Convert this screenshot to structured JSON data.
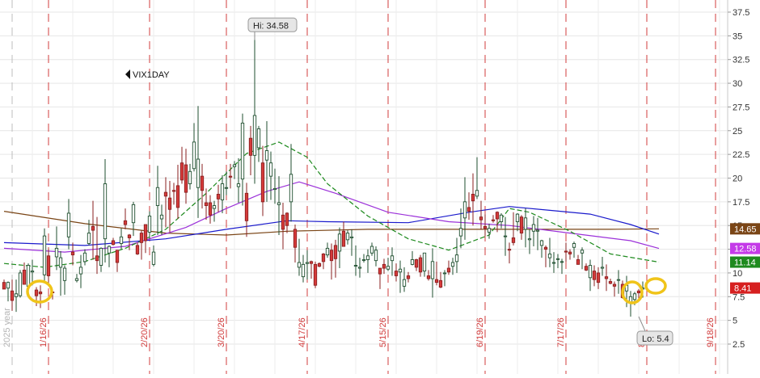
{
  "symbol_label": "VIX1DAY",
  "chart_data": {
    "type": "candlestick",
    "symbol": "VIX1DAY",
    "ylim": [
      0.5,
      39
    ],
    "y_ticks": [
      2.5,
      5,
      7.5,
      10,
      12.5,
      15,
      17.5,
      20,
      22.5,
      25,
      27.5,
      30,
      32.5,
      35,
      37.5
    ],
    "y_tick_labels": [
      "2.5",
      "5",
      "7.5",
      "10",
      "12.5",
      "15",
      "17.5",
      "20",
      "22.5",
      "25",
      "27.5",
      "30",
      "32.5",
      "35",
      "37.5"
    ],
    "date_ticks": [
      {
        "label": "2025 year",
        "idx": 2,
        "faint": true
      },
      {
        "label": "1/16/26",
        "idx": 11
      },
      {
        "label": "2/20/26",
        "idx": 36
      },
      {
        "label": "3/20/26",
        "idx": 55
      },
      {
        "label": "4/17/26",
        "idx": 75
      },
      {
        "label": "5/15/26",
        "idx": 95
      },
      {
        "label": "6/19/26",
        "idx": 119
      },
      {
        "label": "7/17/26",
        "idx": 139
      },
      {
        "label": "8/2",
        "idx": 159
      },
      {
        "label": "9/18/26",
        "idx": 176
      }
    ],
    "high_label": "Hi: 34.58",
    "low_label": "Lo: 5.4",
    "high_value": 34.58,
    "low_value": 5.4,
    "high_idx": 62,
    "low_idx": 157,
    "price_badges": [
      {
        "label": "14.65",
        "value": 14.65,
        "color": "#7a4516"
      },
      {
        "label": "12.58",
        "value": 12.58,
        "color": "#c43ae8"
      },
      {
        "label": "11.14",
        "value": 11.14,
        "color": "#1e8a1e"
      },
      {
        "label": "8.41",
        "value": 8.41,
        "color": "#d62020"
      }
    ],
    "moving_averages": [
      {
        "color": "#7a4516",
        "dashed": false,
        "points": [
          [
            0,
            16.5
          ],
          [
            20,
            15.2
          ],
          [
            40,
            14.2
          ],
          [
            55,
            14.0
          ],
          [
            70,
            14.4
          ],
          [
            90,
            14.6
          ],
          [
            110,
            14.6
          ],
          [
            130,
            14.6
          ],
          [
            150,
            14.6
          ],
          [
            162,
            14.65
          ]
        ]
      },
      {
        "color": "#1a1acc",
        "dashed": false,
        "points": [
          [
            0,
            13.2
          ],
          [
            20,
            12.9
          ],
          [
            40,
            13.6
          ],
          [
            55,
            14.6
          ],
          [
            70,
            15.5
          ],
          [
            80,
            15.4
          ],
          [
            100,
            15.3
          ],
          [
            115,
            16.4
          ],
          [
            125,
            17.0
          ],
          [
            135,
            16.6
          ],
          [
            145,
            16.2
          ],
          [
            155,
            15.1
          ],
          [
            162,
            14.1
          ]
        ]
      },
      {
        "color": "#9b30d9",
        "dashed": false,
        "points": [
          [
            0,
            12.6
          ],
          [
            15,
            12.2
          ],
          [
            30,
            12.8
          ],
          [
            45,
            14.8
          ],
          [
            55,
            16.8
          ],
          [
            65,
            18.6
          ],
          [
            73,
            19.6
          ],
          [
            82,
            18.4
          ],
          [
            95,
            16.4
          ],
          [
            110,
            15.4
          ],
          [
            125,
            15.0
          ],
          [
            140,
            14.2
          ],
          [
            155,
            13.4
          ],
          [
            162,
            12.58
          ]
        ]
      },
      {
        "color": "#1e8a1e",
        "dashed": true,
        "points": [
          [
            0,
            11.0
          ],
          [
            10,
            10.6
          ],
          [
            20,
            11.2
          ],
          [
            30,
            12.6
          ],
          [
            40,
            14.6
          ],
          [
            50,
            18.4
          ],
          [
            60,
            22.6
          ],
          [
            68,
            23.8
          ],
          [
            75,
            22.2
          ],
          [
            80,
            19.4
          ],
          [
            90,
            16.0
          ],
          [
            100,
            13.6
          ],
          [
            110,
            12.4
          ],
          [
            120,
            14.0
          ],
          [
            125,
            16.8
          ],
          [
            130,
            16.4
          ],
          [
            140,
            14.4
          ],
          [
            150,
            12.0
          ],
          [
            162,
            11.14
          ]
        ]
      }
    ],
    "candles": [
      [
        9.0,
        9.3,
        8.5,
        8.3
      ],
      [
        8.4,
        9.1,
        7.0,
        9.0
      ],
      [
        8.1,
        9.3,
        6.0,
        7.1
      ],
      [
        7.5,
        9.3,
        5.9,
        7.8
      ],
      [
        7.6,
        10.3,
        7.4,
        10.0
      ],
      [
        10.3,
        11.1,
        8.8,
        8.8
      ],
      [
        8.6,
        11.0,
        7.5,
        10.8
      ],
      [
        10.1,
        11.4,
        8.7,
        10.2
      ],
      [
        8.2,
        8.5,
        6.5,
        7.6
      ],
      [
        8.0,
        8.7,
        6.3,
        7.8
      ],
      [
        9.8,
        14.7,
        9.2,
        13.9
      ],
      [
        11.8,
        12.5,
        8.9,
        9.7
      ],
      [
        8.0,
        8.2,
        7.2,
        7.9
      ],
      [
        11.7,
        14.9,
        10.3,
        12.6
      ],
      [
        10.6,
        12.3,
        7.6,
        11.6
      ],
      [
        9.2,
        10.8,
        7.7,
        10.5
      ],
      [
        13.8,
        17.8,
        12.5,
        16.3
      ],
      [
        12.2,
        13.2,
        10.8,
        11.9
      ],
      [
        9.2,
        9.9,
        9.0,
        9.4
      ],
      [
        9.9,
        11.9,
        8.4,
        10.6
      ],
      [
        11.2,
        12.5,
        10.8,
        12.1
      ],
      [
        13.1,
        15.6,
        12.9,
        14.2
      ],
      [
        14.9,
        17.6,
        11.4,
        14.5
      ],
      [
        11.8,
        15.9,
        9.9,
        11.3
      ],
      [
        10.8,
        12.7,
        10.1,
        12.6
      ],
      [
        13.6,
        22.0,
        11.1,
        19.4
      ],
      [
        12.1,
        12.9,
        10.6,
        12.8
      ],
      [
        13.4,
        13.7,
        12.9,
        13.0
      ],
      [
        12.4,
        12.4,
        10.1,
        11.1
      ],
      [
        13.1,
        14.7,
        12.5,
        13.8
      ],
      [
        15.5,
        16.8,
        14.6,
        15.1
      ],
      [
        14.0,
        14.1,
        12.4,
        13.7
      ],
      [
        15.3,
        17.5,
        13.9,
        17.2
      ],
      [
        12.9,
        13.2,
        11.9,
        12.0
      ],
      [
        14.2,
        14.5,
        11.4,
        13.2
      ],
      [
        15.1,
        15.1,
        12.1,
        13.4
      ],
      [
        14.3,
        16.5,
        13.6,
        16.0
      ],
      [
        10.9,
        12.9,
        10.7,
        12.2
      ],
      [
        17.1,
        21.3,
        14.0,
        19.0
      ],
      [
        15.7,
        17.2,
        14.0,
        16.1
      ],
      [
        18.5,
        20.1,
        14.8,
        18.1
      ],
      [
        17.9,
        19.7,
        14.3,
        16.7
      ],
      [
        18.7,
        19.5,
        17.2,
        18.6
      ],
      [
        19.2,
        21.4,
        15.7,
        16.9
      ],
      [
        21.6,
        23.3,
        19.4,
        19.8
      ],
      [
        21.4,
        23.1,
        17.3,
        18.5
      ],
      [
        19.4,
        21.5,
        18.8,
        20.7
      ],
      [
        21.0,
        25.8,
        20.7,
        23.8
      ],
      [
        19.0,
        27.6,
        15.8,
        22.0
      ],
      [
        20.2,
        21.5,
        16.8,
        18.7
      ],
      [
        17.4,
        18.9,
        15.6,
        17.1
      ],
      [
        17.4,
        18.2,
        15.2,
        16.1
      ],
      [
        16.8,
        17.6,
        15.4,
        17.1
      ],
      [
        18.3,
        19.3,
        16.4,
        17.8
      ],
      [
        17.7,
        20.3,
        16.3,
        19.4
      ],
      [
        19.0,
        20.7,
        18.2,
        19.0
      ],
      [
        20.2,
        21.5,
        18.9,
        20.1
      ],
      [
        21.2,
        21.8,
        19.9,
        21.4
      ],
      [
        19.1,
        22.1,
        17.4,
        19.4
      ],
      [
        19.9,
        26.8,
        17.1,
        25.8
      ],
      [
        18.4,
        19.5,
        13.8,
        15.5
      ],
      [
        24.2,
        25.5,
        20.3,
        22.4
      ],
      [
        22.4,
        34.58,
        19.4,
        26.6
      ],
      [
        23.2,
        25.5,
        21.7,
        25.2
      ],
      [
        21.6,
        23.4,
        16.0,
        17.5
      ],
      [
        21.9,
        26.0,
        17.5,
        22.9
      ],
      [
        20.2,
        22.8,
        17.7,
        21.6
      ],
      [
        18.8,
        21.0,
        17.3,
        18.9
      ],
      [
        17.2,
        20.2,
        14.0,
        17.4
      ],
      [
        16.1,
        17.4,
        12.5,
        14.6
      ],
      [
        16.3,
        16.4,
        14.2,
        15.0
      ],
      [
        17.5,
        23.6,
        15.4,
        20.4
      ],
      [
        14.6,
        15.1,
        11.1,
        12.7
      ],
      [
        10.6,
        13.6,
        9.7,
        11.1
      ],
      [
        9.6,
        11.9,
        9.0,
        10.9
      ],
      [
        11.0,
        12.4,
        9.3,
        11.1
      ],
      [
        11.2,
        11.3,
        9.4,
        11.0
      ],
      [
        10.9,
        11.2,
        8.4,
        8.7
      ],
      [
        11.0,
        11.1,
        10.6,
        10.7
      ],
      [
        12.0,
        12.1,
        10.4,
        11.2
      ],
      [
        11.9,
        13.2,
        11.6,
        12.6
      ],
      [
        12.4,
        13.1,
        9.3,
        11.3
      ],
      [
        12.9,
        13.5,
        9.5,
        11.5
      ],
      [
        12.3,
        14.8,
        10.5,
        14.1
      ],
      [
        14.4,
        15.4,
        12.8,
        12.8
      ],
      [
        13.5,
        14.5,
        13.0,
        14.2
      ],
      [
        13.7,
        14.6,
        11.8,
        13.8
      ],
      [
        10.8,
        12.9,
        9.7,
        10.8
      ],
      [
        10.5,
        11.6,
        9.5,
        10.6
      ],
      [
        11.4,
        12.0,
        11.1,
        11.4
      ],
      [
        11.4,
        12.5,
        10.0,
        11.8
      ],
      [
        12.1,
        13.2,
        11.8,
        12.8
      ],
      [
        11.3,
        12.8,
        10.7,
        12.4
      ],
      [
        10.5,
        10.5,
        8.3,
        9.9
      ],
      [
        10.9,
        11.5,
        9.9,
        10.5
      ],
      [
        10.4,
        11.6,
        10.2,
        10.7
      ],
      [
        11.3,
        12.7,
        9.7,
        11.8
      ],
      [
        10.2,
        11.0,
        9.1,
        9.7
      ],
      [
        10.1,
        11.3,
        7.9,
        10.4
      ],
      [
        8.6,
        10.6,
        8.0,
        9.3
      ],
      [
        9.7,
        10.1,
        9.0,
        9.4
      ],
      [
        10.9,
        12.3,
        10.8,
        11.4
      ],
      [
        11.4,
        11.5,
        10.2,
        10.6
      ],
      [
        11.6,
        11.9,
        9.6,
        10.1
      ],
      [
        10.2,
        12.1,
        9.6,
        12.1
      ],
      [
        9.7,
        10.3,
        9.2,
        9.4
      ],
      [
        9.4,
        12.6,
        7.4,
        11.2
      ],
      [
        9.3,
        11.2,
        8.7,
        9.0
      ],
      [
        9.2,
        10.1,
        8.4,
        8.5
      ],
      [
        10.0,
        10.3,
        8.6,
        10.0
      ],
      [
        10.5,
        11.3,
        9.8,
        10.1
      ],
      [
        10.7,
        11.6,
        9.8,
        11.1
      ],
      [
        11.2,
        13.7,
        10.0,
        11.9
      ],
      [
        13.9,
        16.8,
        12.6,
        14.7
      ],
      [
        15.8,
        20.1,
        13.5,
        17.5
      ],
      [
        16.9,
        18.5,
        15.6,
        16.5
      ],
      [
        18.3,
        20.5,
        15.0,
        17.6
      ],
      [
        18.1,
        22.2,
        17.8,
        18.7
      ],
      [
        15.9,
        17.6,
        14.6,
        15.6
      ],
      [
        14.9,
        16.2,
        13.9,
        14.7
      ],
      [
        14.3,
        15.2,
        13.6,
        14.7
      ],
      [
        15.6,
        16.1,
        15.3,
        15.5
      ],
      [
        16.4,
        16.5,
        14.3,
        15.7
      ],
      [
        15.4,
        16.3,
        14.7,
        16.1
      ],
      [
        13.9,
        15.9,
        11.8,
        13.9
      ],
      [
        12.5,
        13.2,
        11.0,
        12.4
      ],
      [
        13.7,
        16.4,
        12.9,
        13.2
      ],
      [
        15.4,
        16.3,
        14.4,
        16.2
      ],
      [
        15.9,
        16.1,
        13.5,
        14.2
      ],
      [
        14.6,
        16.8,
        12.7,
        15.8
      ],
      [
        13.5,
        14.6,
        12.0,
        13.6
      ],
      [
        14.4,
        16.0,
        12.8,
        15.1
      ],
      [
        14.4,
        15.8,
        12.4,
        14.5
      ],
      [
        12.9,
        13.5,
        11.6,
        13.4
      ],
      [
        12.7,
        12.9,
        10.6,
        12.5
      ],
      [
        11.6,
        13.7,
        10.6,
        12.0
      ],
      [
        11.1,
        12.2,
        10.0,
        11.1
      ],
      [
        11.5,
        12.0,
        10.5,
        11.5
      ],
      [
        11.2,
        11.5,
        9.9,
        11.2
      ],
      [
        12.3,
        13.2,
        11.2,
        12.2
      ],
      [
        12.2,
        12.5,
        11.4,
        12.0
      ],
      [
        12.7,
        13.3,
        11.6,
        13.1
      ],
      [
        11.4,
        11.9,
        10.9,
        10.9
      ],
      [
        12.1,
        12.7,
        10.4,
        12.4
      ],
      [
        10.7,
        11.0,
        10.2,
        10.3
      ],
      [
        9.5,
        11.4,
        8.1,
        10.8
      ],
      [
        10.2,
        10.8,
        8.6,
        9.3
      ],
      [
        10.0,
        10.6,
        8.3,
        9.0
      ],
      [
        10.5,
        11.7,
        9.7,
        10.6
      ],
      [
        9.6,
        10.9,
        8.1,
        9.4
      ],
      [
        9.1,
        9.4,
        8.8,
        8.9
      ],
      [
        8.8,
        9.1,
        7.5,
        8.6
      ],
      [
        9.3,
        10.3,
        7.8,
        9.3
      ],
      [
        8.8,
        9.2,
        7.3,
        7.4
      ],
      [
        8.1,
        9.7,
        6.4,
        8.7
      ],
      [
        6.9,
        8.1,
        5.4,
        7.5
      ],
      [
        7.2,
        8.0,
        6.6,
        7.8
      ],
      [
        8.1,
        8.3,
        7.1,
        7.9
      ],
      [
        8.3,
        9.1,
        7.4,
        8.41
      ]
    ]
  }
}
